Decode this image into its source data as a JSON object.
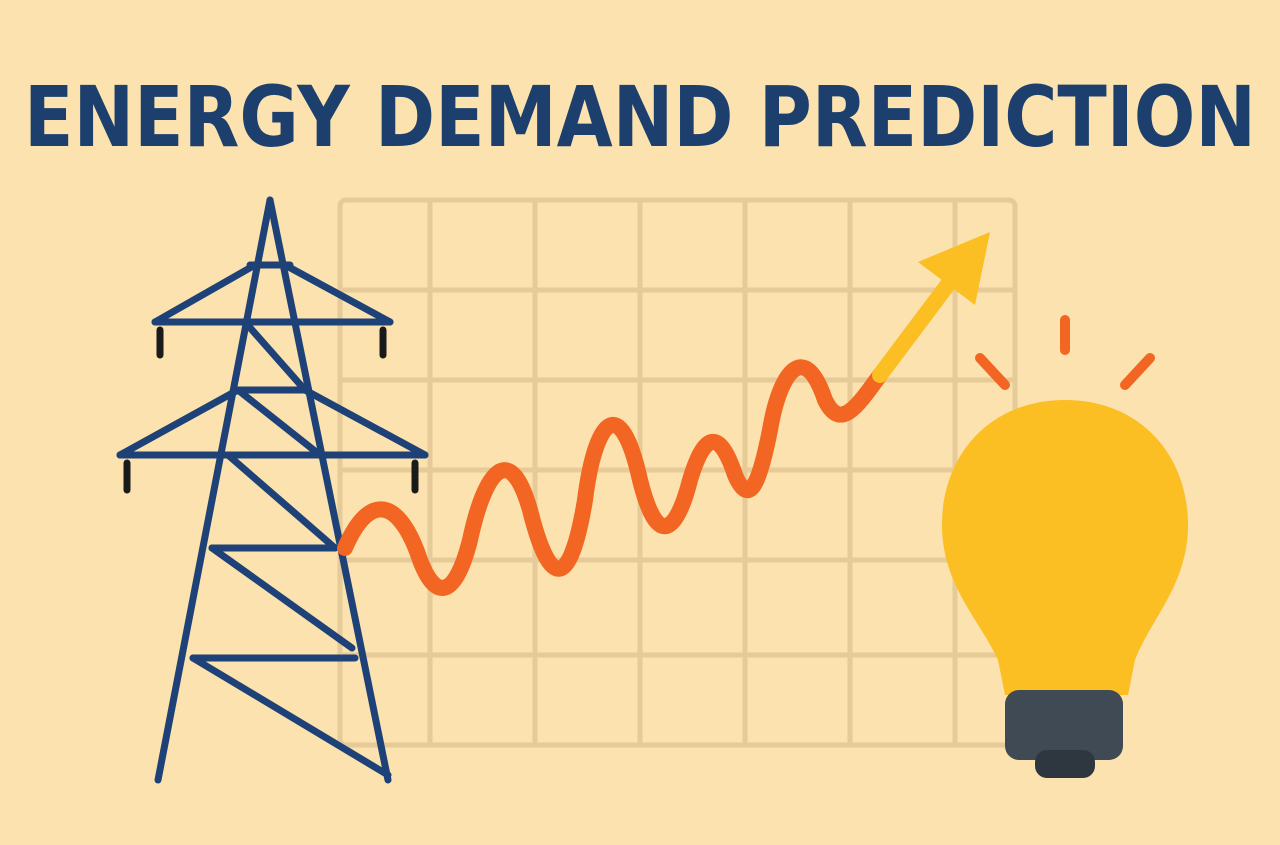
{
  "title": "ENERGY DEMAND PREDICTION"
}
